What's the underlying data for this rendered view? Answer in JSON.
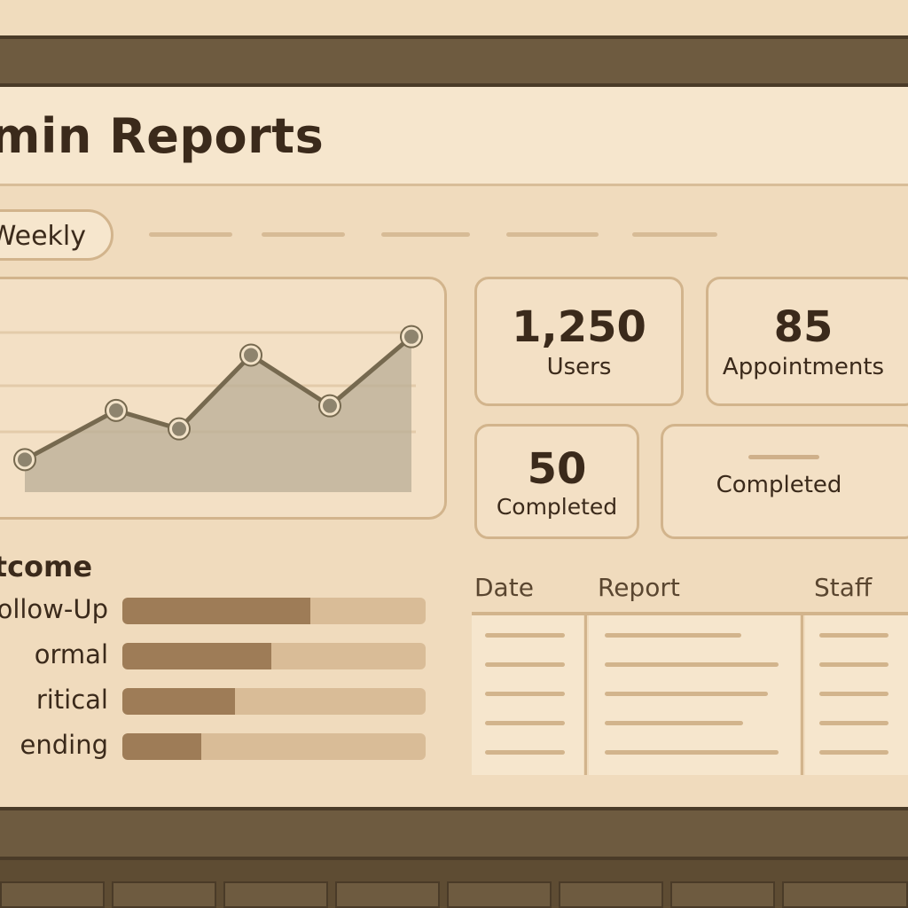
{
  "header": {
    "title": "dmin Reports"
  },
  "filters": {
    "period_label": "Weekly",
    "tab_count": 5
  },
  "chart_data": {
    "type": "area",
    "points": [
      20,
      52,
      40,
      88,
      55,
      100
    ],
    "ylim": [
      0,
      120
    ],
    "grid": true,
    "colors": {
      "line": "#76694f",
      "fill": "#b9ad96",
      "marker": "#8e846e"
    }
  },
  "stats": {
    "users": {
      "value": "1,250",
      "label": "Users"
    },
    "appointments": {
      "value": "85",
      "label": "Appointments"
    },
    "completed_count": {
      "value": "50",
      "label": "Completed"
    },
    "completed_status": {
      "label": "Completed"
    }
  },
  "outcome": {
    "title": "utcome",
    "items": [
      {
        "label": "ollow-Up",
        "value": 0.62
      },
      {
        "label": "ormal",
        "value": 0.49
      },
      {
        "label": "ritical",
        "value": 0.37
      },
      {
        "label": "ending",
        "value": 0.26
      }
    ]
  },
  "table": {
    "headers": {
      "date": "Date",
      "report": "Report",
      "staff": "Staff"
    },
    "row_count": 5
  },
  "colors": {
    "background": "#efdcc0",
    "card": "#f3e0c5",
    "border": "#d2b48c",
    "text": "#3b2a1b",
    "bezel": "#6e5b40",
    "bar_fill": "#9e7c57"
  }
}
